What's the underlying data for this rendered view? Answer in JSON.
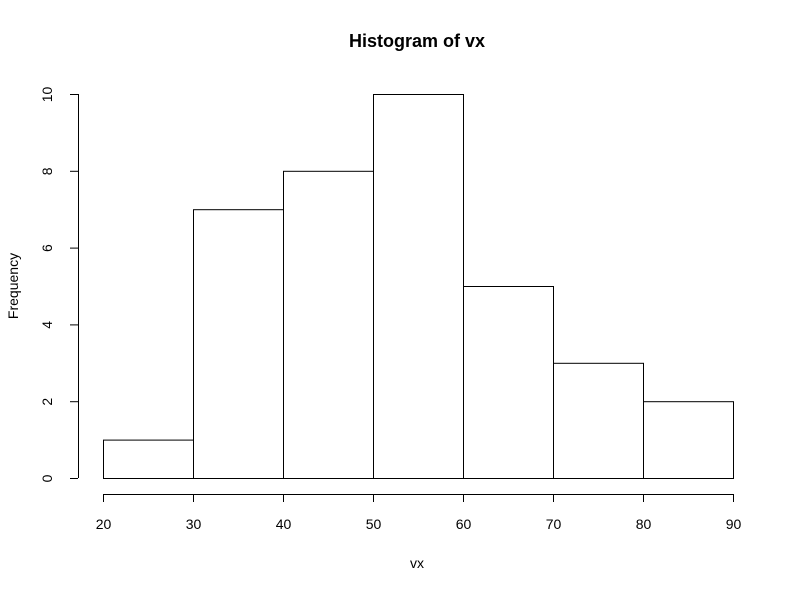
{
  "chart_data": {
    "type": "bar",
    "title": "Histogram of vx",
    "xlabel": "vx",
    "ylabel": "Frequency",
    "bins": [
      {
        "from": 20,
        "to": 30,
        "count": 1
      },
      {
        "from": 30,
        "to": 40,
        "count": 7
      },
      {
        "from": 40,
        "to": 50,
        "count": 8
      },
      {
        "from": 50,
        "to": 60,
        "count": 10
      },
      {
        "from": 60,
        "to": 70,
        "count": 5
      },
      {
        "from": 70,
        "to": 80,
        "count": 3
      },
      {
        "from": 80,
        "to": 90,
        "count": 2
      }
    ],
    "xlim": [
      20,
      90
    ],
    "ylim": [
      0,
      10
    ],
    "x_ticks": [
      20,
      30,
      40,
      50,
      60,
      70,
      80,
      90
    ],
    "y_ticks": [
      0,
      2,
      4,
      6,
      8,
      10
    ],
    "grid": false,
    "bar_fill": "#ffffff",
    "bar_stroke": "#000000"
  }
}
